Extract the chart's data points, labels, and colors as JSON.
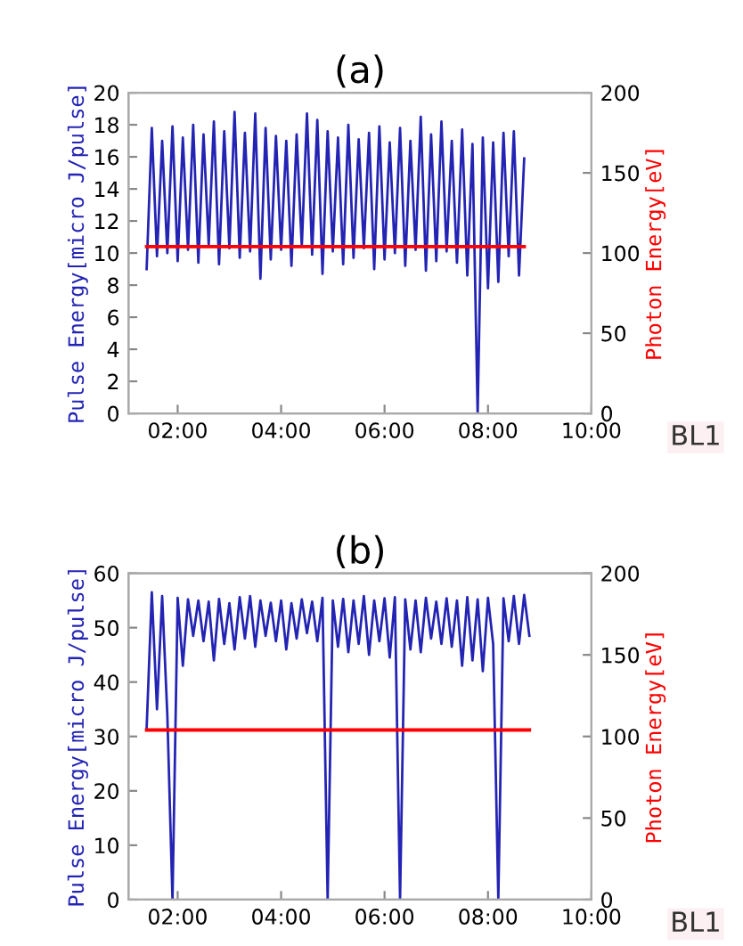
{
  "chart_data": [
    {
      "type": "line",
      "title": "(a)",
      "ylabel": "Pulse Energy[micro J/pulse]",
      "y2label": "Photon Energy[eV]",
      "xlim": [
        1.05,
        10
      ],
      "xticks": [
        {
          "value": 2,
          "label": "02:00"
        },
        {
          "value": 4,
          "label": "04:00"
        },
        {
          "value": 6,
          "label": "06:00"
        },
        {
          "value": 8,
          "label": "08:00"
        },
        {
          "value": 10,
          "label": "10:00"
        }
      ],
      "ylim": [
        0,
        20
      ],
      "yticks": [
        0,
        2,
        4,
        6,
        8,
        10,
        12,
        14,
        16,
        18,
        20
      ],
      "y2lim": [
        0,
        200
      ],
      "y2ticks": [
        0,
        50,
        100,
        150,
        200
      ],
      "annotations": [
        "BL1"
      ],
      "series": [
        {
          "color": "#2424b4",
          "x": [
            1.4,
            1.5,
            1.6,
            1.7,
            1.8,
            1.9,
            2.0,
            2.1,
            2.2,
            2.3,
            2.4,
            2.5,
            2.6,
            2.7,
            2.8,
            2.9,
            3.0,
            3.1,
            3.2,
            3.3,
            3.4,
            3.5,
            3.6,
            3.7,
            3.8,
            3.9,
            4.0,
            4.1,
            4.2,
            4.3,
            4.4,
            4.5,
            4.6,
            4.7,
            4.8,
            4.9,
            5.0,
            5.1,
            5.2,
            5.3,
            5.4,
            5.5,
            5.6,
            5.7,
            5.8,
            5.9,
            6.0,
            6.1,
            6.2,
            6.3,
            6.4,
            6.5,
            6.6,
            6.7,
            6.8,
            6.9,
            7.0,
            7.1,
            7.2,
            7.3,
            7.4,
            7.5,
            7.6,
            7.7,
            7.8,
            7.9,
            8.0,
            8.1,
            8.2,
            8.3,
            8.4,
            8.5,
            8.6,
            8.7
          ],
          "values": [
            9.0,
            17.8,
            9.8,
            17.0,
            10.0,
            17.9,
            9.5,
            17.2,
            10.2,
            18.0,
            9.4,
            17.4,
            10.5,
            18.2,
            9.3,
            17.6,
            10.3,
            18.8,
            9.7,
            17.5,
            10.1,
            18.7,
            8.4,
            17.8,
            9.6,
            17.3,
            10.2,
            17.0,
            9.2,
            17.4,
            10.4,
            18.7,
            9.9,
            18.3,
            8.7,
            17.6,
            10.1,
            17.2,
            9.3,
            18.0,
            9.7,
            17.1,
            10.3,
            17.5,
            9.0,
            17.9,
            9.6,
            16.9,
            10.0,
            17.8,
            9.2,
            17.0,
            10.2,
            18.5,
            8.9,
            17.4,
            9.5,
            18.2,
            10.1,
            17.0,
            9.4,
            17.7,
            8.6,
            16.8,
            0,
            17.2,
            7.8,
            16.9,
            8.2,
            17.5,
            9.8,
            17.6,
            8.6,
            15.9
          ]
        },
        {
          "color": "#ff0000",
          "axis": "y2",
          "x": [
            1.4,
            8.7
          ],
          "values": [
            104,
            104
          ]
        }
      ]
    },
    {
      "type": "line",
      "title": "(b)",
      "ylabel": "Pulse Energy[micro J/pulse]",
      "y2label": "Photon Energy[eV]",
      "xlim": [
        1.05,
        10
      ],
      "xticks": [
        {
          "value": 2,
          "label": "02:00"
        },
        {
          "value": 4,
          "label": "04:00"
        },
        {
          "value": 6,
          "label": "06:00"
        },
        {
          "value": 8,
          "label": "08:00"
        },
        {
          "value": 10,
          "label": "10:00"
        }
      ],
      "ylim": [
        0,
        60
      ],
      "yticks": [
        0,
        10,
        20,
        30,
        40,
        50,
        60
      ],
      "y2lim": [
        0,
        200
      ],
      "y2ticks": [
        0,
        50,
        100,
        150,
        200
      ],
      "annotations": [
        "BL1"
      ],
      "series": [
        {
          "color": "#2424b4",
          "x": [
            1.4,
            1.5,
            1.6,
            1.7,
            1.8,
            1.9,
            2.0,
            2.1,
            2.2,
            2.3,
            2.4,
            2.5,
            2.6,
            2.7,
            2.8,
            2.9,
            3.0,
            3.1,
            3.2,
            3.3,
            3.4,
            3.5,
            3.6,
            3.7,
            3.8,
            3.9,
            4.0,
            4.1,
            4.2,
            4.3,
            4.4,
            4.5,
            4.6,
            4.7,
            4.8,
            4.9,
            5.0,
            5.1,
            5.2,
            5.3,
            5.4,
            5.5,
            5.6,
            5.7,
            5.8,
            5.9,
            6.0,
            6.1,
            6.2,
            6.3,
            6.4,
            6.5,
            6.6,
            6.7,
            6.8,
            6.9,
            7.0,
            7.1,
            7.2,
            7.3,
            7.4,
            7.5,
            7.6,
            7.7,
            7.8,
            7.9,
            8.0,
            8.1,
            8.2,
            8.3,
            8.4,
            8.5,
            8.6,
            8.7,
            8.8
          ],
          "values": [
            31.5,
            56.5,
            35.0,
            55.8,
            34.0,
            0,
            55.5,
            43.0,
            55.2,
            48.5,
            55.0,
            47.5,
            54.8,
            44.0,
            55.3,
            47.0,
            54.5,
            46.0,
            55.6,
            48.0,
            55.8,
            46.5,
            55.0,
            48.5,
            54.6,
            47.5,
            55.0,
            46.0,
            54.5,
            48.0,
            55.2,
            49.0,
            54.8,
            47.5,
            55.5,
            0,
            55.0,
            46.5,
            55.3,
            45.5,
            55.0,
            47.0,
            55.8,
            45.0,
            55.0,
            47.5,
            55.4,
            44.5,
            55.6,
            0,
            55.2,
            46.0,
            55.0,
            45.5,
            55.5,
            48.0,
            54.8,
            47.0,
            55.4,
            46.5,
            55.0,
            43.0,
            55.6,
            44.0,
            55.2,
            42.0,
            55.5,
            47.0,
            0,
            55.4,
            47.5,
            55.8,
            47.0,
            56.0,
            48.5
          ]
        },
        {
          "color": "#ff0000",
          "axis": "y2",
          "x": [
            1.4,
            8.8
          ],
          "values": [
            104,
            104
          ]
        }
      ]
    }
  ]
}
